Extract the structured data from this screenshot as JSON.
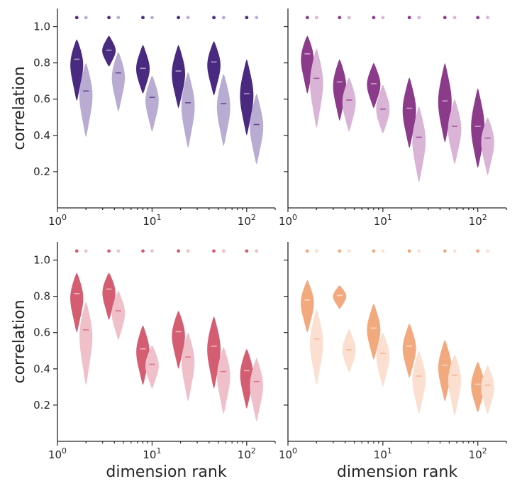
{
  "figure": {
    "ylabel": "correlation",
    "xlabel": "dimension rank",
    "x_ticks": [
      {
        "base": "10",
        "exp": "0"
      },
      {
        "base": "10",
        "exp": "1"
      },
      {
        "base": "10",
        "exp": "2"
      }
    ],
    "y_ticks": [
      "0.2",
      "0.4",
      "0.6",
      "0.8",
      "1.0"
    ]
  },
  "chart_data": [
    {
      "type": "violin",
      "panel": "top-left",
      "x_scale": "log",
      "xlim": [
        1,
        200
      ],
      "ylim": [
        0,
        1.1
      ],
      "colors": {
        "dark": "#4a2a80",
        "light": "#b9acd3",
        "dot_dark": "#4a2a80",
        "dot_light": "#b9acd3"
      },
      "ylabel": "correlation",
      "xlabel": "",
      "groups": [
        {
          "x": 1.6,
          "median": 0.82,
          "min": 0.59,
          "max": 0.93,
          "shade": "dark"
        },
        {
          "x": 2.0,
          "median": 0.645,
          "min": 0.39,
          "max": 0.8,
          "shade": "light"
        },
        {
          "x": 3.5,
          "median": 0.87,
          "min": 0.78,
          "max": 0.95,
          "shade": "dark"
        },
        {
          "x": 4.4,
          "median": 0.745,
          "min": 0.53,
          "max": 0.86,
          "shade": "light"
        },
        {
          "x": 8.0,
          "median": 0.77,
          "min": 0.63,
          "max": 0.9,
          "shade": "dark"
        },
        {
          "x": 10.0,
          "median": 0.61,
          "min": 0.42,
          "max": 0.73,
          "shade": "light"
        },
        {
          "x": 19.0,
          "median": 0.755,
          "min": 0.55,
          "max": 0.9,
          "shade": "dark"
        },
        {
          "x": 24.0,
          "median": 0.58,
          "min": 0.33,
          "max": 0.75,
          "shade": "light"
        },
        {
          "x": 45.0,
          "median": 0.805,
          "min": 0.62,
          "max": 0.92,
          "shade": "dark"
        },
        {
          "x": 57.0,
          "median": 0.575,
          "min": 0.34,
          "max": 0.74,
          "shade": "light"
        },
        {
          "x": 100.0,
          "median": 0.63,
          "min": 0.4,
          "max": 0.82,
          "shade": "dark"
        },
        {
          "x": 127.0,
          "median": 0.46,
          "min": 0.24,
          "max": 0.63,
          "shade": "light"
        }
      ]
    },
    {
      "type": "violin",
      "panel": "top-right",
      "x_scale": "log",
      "xlim": [
        1,
        200
      ],
      "ylim": [
        0,
        1.1
      ],
      "colors": {
        "dark": "#8c3a8a",
        "light": "#dab4d6",
        "dot_dark": "#8c3a8a",
        "dot_light": "#dab4d6"
      },
      "ylabel": "",
      "xlabel": "",
      "groups": [
        {
          "x": 1.6,
          "median": 0.85,
          "min": 0.63,
          "max": 0.95,
          "shade": "dark"
        },
        {
          "x": 2.0,
          "median": 0.715,
          "min": 0.44,
          "max": 0.88,
          "shade": "light"
        },
        {
          "x": 3.5,
          "median": 0.695,
          "min": 0.48,
          "max": 0.82,
          "shade": "dark"
        },
        {
          "x": 4.4,
          "median": 0.595,
          "min": 0.42,
          "max": 0.72,
          "shade": "light"
        },
        {
          "x": 8.0,
          "median": 0.685,
          "min": 0.55,
          "max": 0.8,
          "shade": "dark"
        },
        {
          "x": 10.0,
          "median": 0.545,
          "min": 0.41,
          "max": 0.68,
          "shade": "light"
        },
        {
          "x": 19.0,
          "median": 0.55,
          "min": 0.33,
          "max": 0.72,
          "shade": "dark"
        },
        {
          "x": 24.0,
          "median": 0.39,
          "min": 0.14,
          "max": 0.56,
          "shade": "light"
        },
        {
          "x": 45.0,
          "median": 0.59,
          "min": 0.36,
          "max": 0.8,
          "shade": "dark"
        },
        {
          "x": 57.0,
          "median": 0.45,
          "min": 0.24,
          "max": 0.6,
          "shade": "light"
        },
        {
          "x": 100.0,
          "median": 0.45,
          "min": 0.22,
          "max": 0.66,
          "shade": "dark"
        },
        {
          "x": 127.0,
          "median": 0.385,
          "min": 0.18,
          "max": 0.5,
          "shade": "light"
        }
      ]
    },
    {
      "type": "violin",
      "panel": "bottom-left",
      "x_scale": "log",
      "xlim": [
        1,
        200
      ],
      "ylim": [
        0,
        1.1
      ],
      "colors": {
        "dark": "#d45d72",
        "light": "#f0c0ca",
        "dot_dark": "#d45d72",
        "dot_light": "#f0c0ca"
      },
      "ylabel": "correlation",
      "xlabel": "dimension rank",
      "groups": [
        {
          "x": 1.6,
          "median": 0.815,
          "min": 0.6,
          "max": 0.93,
          "shade": "dark"
        },
        {
          "x": 2.0,
          "median": 0.615,
          "min": 0.31,
          "max": 0.77,
          "shade": "light"
        },
        {
          "x": 3.5,
          "median": 0.84,
          "min": 0.67,
          "max": 0.93,
          "shade": "dark"
        },
        {
          "x": 4.4,
          "median": 0.72,
          "min": 0.56,
          "max": 0.83,
          "shade": "light"
        },
        {
          "x": 8.0,
          "median": 0.51,
          "min": 0.31,
          "max": 0.64,
          "shade": "dark"
        },
        {
          "x": 10.0,
          "median": 0.425,
          "min": 0.29,
          "max": 0.53,
          "shade": "light"
        },
        {
          "x": 19.0,
          "median": 0.605,
          "min": 0.4,
          "max": 0.72,
          "shade": "dark"
        },
        {
          "x": 24.0,
          "median": 0.465,
          "min": 0.22,
          "max": 0.6,
          "shade": "light"
        },
        {
          "x": 45.0,
          "median": 0.525,
          "min": 0.29,
          "max": 0.69,
          "shade": "dark"
        },
        {
          "x": 57.0,
          "median": 0.385,
          "min": 0.15,
          "max": 0.52,
          "shade": "light"
        },
        {
          "x": 100.0,
          "median": 0.39,
          "min": 0.18,
          "max": 0.51,
          "shade": "dark"
        },
        {
          "x": 127.0,
          "median": 0.33,
          "min": 0.11,
          "max": 0.46,
          "shade": "light"
        }
      ]
    },
    {
      "type": "violin",
      "panel": "bottom-right",
      "x_scale": "log",
      "xlim": [
        1,
        200
      ],
      "ylim": [
        0,
        1.1
      ],
      "colors": {
        "dark": "#f3a97e",
        "light": "#fbe0d2",
        "dot_dark": "#f3a97e",
        "dot_light": "#fbe0d2"
      },
      "ylabel": "",
      "xlabel": "dimension rank",
      "groups": [
        {
          "x": 1.6,
          "median": 0.78,
          "min": 0.6,
          "max": 0.89,
          "shade": "dark"
        },
        {
          "x": 2.0,
          "median": 0.565,
          "min": 0.31,
          "max": 0.73,
          "shade": "light"
        },
        {
          "x": 3.5,
          "median": 0.805,
          "min": 0.73,
          "max": 0.86,
          "shade": "dark"
        },
        {
          "x": 4.4,
          "median": 0.505,
          "min": 0.38,
          "max": 0.62,
          "shade": "light"
        },
        {
          "x": 8.0,
          "median": 0.625,
          "min": 0.45,
          "max": 0.76,
          "shade": "dark"
        },
        {
          "x": 10.0,
          "median": 0.485,
          "min": 0.3,
          "max": 0.6,
          "shade": "light"
        },
        {
          "x": 19.0,
          "median": 0.525,
          "min": 0.35,
          "max": 0.65,
          "shade": "dark"
        },
        {
          "x": 24.0,
          "median": 0.36,
          "min": 0.15,
          "max": 0.5,
          "shade": "light"
        },
        {
          "x": 45.0,
          "median": 0.42,
          "min": 0.22,
          "max": 0.56,
          "shade": "dark"
        },
        {
          "x": 57.0,
          "median": 0.365,
          "min": 0.14,
          "max": 0.48,
          "shade": "light"
        },
        {
          "x": 100.0,
          "median": 0.315,
          "min": 0.16,
          "max": 0.44,
          "shade": "dark"
        },
        {
          "x": 127.0,
          "median": 0.31,
          "min": 0.15,
          "max": 0.42,
          "shade": "light"
        }
      ]
    }
  ]
}
